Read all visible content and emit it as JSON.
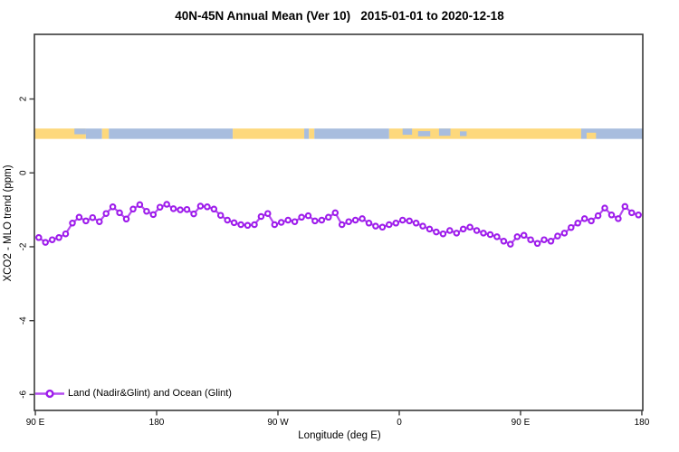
{
  "title": "40N-45N Annual Mean (Ver 10)   2015-01-01 to 2020-12-18",
  "axes": {
    "x_label": "Longitude (deg E)",
    "y_label": "XCO2 - MLO trend (ppm)",
    "x_ticks": [
      {
        "value": 90,
        "label": "90 E"
      },
      {
        "value": 180,
        "label": "180"
      },
      {
        "value": 270,
        "label": "90 W"
      },
      {
        "value": 360,
        "label": "0"
      },
      {
        "value": 450,
        "label": "90 E"
      },
      {
        "value": 540,
        "label": "180"
      }
    ],
    "y_ticks": [
      {
        "value": 2,
        "label": "2"
      },
      {
        "value": 0,
        "label": "0"
      },
      {
        "value": -2,
        "label": "-2"
      },
      {
        "value": -4,
        "label": "-4"
      },
      {
        "value": -6,
        "label": "-6"
      }
    ],
    "x_range": [
      89.3,
      540.7
    ],
    "y_range": [
      -6.43,
      3.75
    ]
  },
  "legend": {
    "label": "Land (Nadir&Glint) and Ocean (Glint)"
  },
  "colors": {
    "series_line": "#b44bf0",
    "series_marker": "#9d1beb",
    "marker_fill": "#ffffff",
    "land": "#fdd87c",
    "ocean": "#a8bdde",
    "box": "#3a3a3a",
    "text": "#000000",
    "background": "#ffffff"
  },
  "chart_data": {
    "type": "line",
    "title": "40N-45N Annual Mean (Ver 10)   2015-01-01 to 2020-12-18",
    "xlabel": "Longitude (deg E)",
    "ylabel": "XCO2 - MLO trend (ppm)",
    "series_name": "Land (Nadir&Glint) and Ocean (Glint)",
    "marker": "open-circle",
    "grid": false,
    "legend_position": "bottom-left",
    "x": [
      92.5,
      97.5,
      102.5,
      107.5,
      112.5,
      117.5,
      122.5,
      127.5,
      132.5,
      137.5,
      142.5,
      147.5,
      152.5,
      157.5,
      162.5,
      167.5,
      172.5,
      177.5,
      182.5,
      187.5,
      192.5,
      197.5,
      202.5,
      207.5,
      212.5,
      217.5,
      222.5,
      227.5,
      232.5,
      237.5,
      242.5,
      247.5,
      252.5,
      257.5,
      262.5,
      267.5,
      272.5,
      277.5,
      282.5,
      287.5,
      292.5,
      297.5,
      302.5,
      307.5,
      312.5,
      317.5,
      322.5,
      327.5,
      332.5,
      337.5,
      342.5,
      347.5,
      352.5,
      357.5,
      362.5,
      367.5,
      372.5,
      377.5,
      382.5,
      387.5,
      392.5,
      397.5,
      402.5,
      407.5,
      412.5,
      417.5,
      422.5,
      427.5,
      432.5,
      437.5,
      442.5,
      447.5,
      452.5,
      457.5,
      462.5,
      467.5,
      472.5,
      477.5,
      482.5,
      487.5,
      492.5,
      497.5,
      502.5,
      507.5,
      512.5,
      517.5,
      522.5,
      527.5,
      532.5,
      537.5
    ],
    "y": [
      -1.75,
      -1.88,
      -1.81,
      -1.75,
      -1.65,
      -1.36,
      -1.2,
      -1.3,
      -1.21,
      -1.32,
      -1.1,
      -0.92,
      -1.08,
      -1.25,
      -0.98,
      -0.86,
      -1.04,
      -1.13,
      -0.93,
      -0.85,
      -0.97,
      -1.0,
      -0.99,
      -1.11,
      -0.9,
      -0.92,
      -0.98,
      -1.15,
      -1.28,
      -1.35,
      -1.4,
      -1.42,
      -1.4,
      -1.18,
      -1.1,
      -1.4,
      -1.34,
      -1.28,
      -1.32,
      -1.2,
      -1.16,
      -1.3,
      -1.28,
      -1.2,
      -1.08,
      -1.4,
      -1.32,
      -1.28,
      -1.24,
      -1.36,
      -1.44,
      -1.47,
      -1.4,
      -1.36,
      -1.28,
      -1.3,
      -1.36,
      -1.44,
      -1.52,
      -1.6,
      -1.65,
      -1.56,
      -1.63,
      -1.52,
      -1.47,
      -1.56,
      -1.63,
      -1.67,
      -1.73,
      -1.85,
      -1.93,
      -1.73,
      -1.69,
      -1.81,
      -1.91,
      -1.81,
      -1.85,
      -1.71,
      -1.63,
      -1.48,
      -1.36,
      -1.24,
      -1.3,
      -1.16,
      -0.95,
      -1.14,
      -1.24,
      -0.91,
      -1.08,
      -1.14
    ],
    "land_ocean_band": {
      "y_range": [
        0.92,
        1.2
      ],
      "segments": [
        {
          "from": 89.3,
          "to": 127.5,
          "type": "land"
        },
        {
          "from": 127.5,
          "to": 139.5,
          "type": "ocean"
        },
        {
          "from": 139.5,
          "to": 144.5,
          "type": "land"
        },
        {
          "from": 144.5,
          "to": 236.5,
          "type": "ocean"
        },
        {
          "from": 236.5,
          "to": 289.5,
          "type": "land"
        },
        {
          "from": 289.5,
          "to": 293.0,
          "type": "ocean"
        },
        {
          "from": 293.0,
          "to": 297.0,
          "type": "land"
        },
        {
          "from": 297.0,
          "to": 352.5,
          "type": "ocean"
        },
        {
          "from": 352.5,
          "to": 495.0,
          "type": "land"
        },
        {
          "from": 495.0,
          "to": 540.7,
          "type": "ocean"
        }
      ],
      "patches": [
        {
          "from": 119.0,
          "to": 127.5,
          "type": "ocean",
          "align": "top",
          "frac": 0.55
        },
        {
          "from": 362.5,
          "to": 369.5,
          "type": "ocean",
          "align": "top",
          "frac": 0.6
        },
        {
          "from": 374.0,
          "to": 383.0,
          "type": "ocean",
          "align": "mid",
          "frac": 0.5
        },
        {
          "from": 389.5,
          "to": 398.0,
          "type": "ocean",
          "align": "top",
          "frac": 0.7
        },
        {
          "from": 405.0,
          "to": 410.0,
          "type": "ocean",
          "align": "mid",
          "frac": 0.45
        },
        {
          "from": 499.0,
          "to": 506.0,
          "type": "land",
          "align": "bottom",
          "frac": 0.6
        }
      ]
    }
  }
}
